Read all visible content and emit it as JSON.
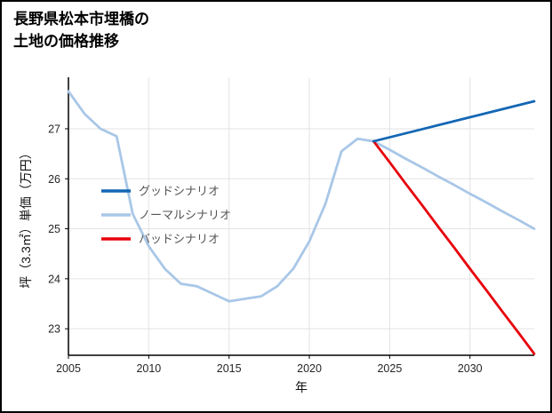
{
  "page": {
    "title_line1": "長野県松本市埋橋の",
    "title_line2": "土地の価格推移"
  },
  "chart_data": {
    "type": "line",
    "title": "長野県松本市埋橋の土地の価格推移",
    "xlabel": "年",
    "ylabel": "坪（3.3㎡）単価（万円）",
    "xlim": [
      2005,
      2034
    ],
    "ylim": [
      22.47,
      28.03
    ],
    "xticks": [
      2005,
      2010,
      2015,
      2020,
      2025,
      2030
    ],
    "yticks": [
      23,
      24,
      25,
      26,
      27
    ],
    "grid": true,
    "legend_position": "center-left",
    "axis_color": "#000000",
    "grid_color": "#e3e3e3",
    "tick_label_color": "#262626",
    "legend_text_color": "#555555",
    "series": [
      {
        "name": "グッドシナリオ",
        "color": "#1467b4",
        "x": [
          2024,
          2025,
          2026,
          2027,
          2028,
          2029,
          2030,
          2031,
          2032,
          2033,
          2034
        ],
        "y": [
          26.75,
          26.83,
          26.91,
          26.99,
          27.07,
          27.15,
          27.23,
          27.31,
          27.39,
          27.47,
          27.55
        ]
      },
      {
        "name": "ノーマルシナリオ",
        "color": "#a9c7e7",
        "x": [
          2005,
          2006,
          2007,
          2008,
          2009,
          2010,
          2011,
          2012,
          2013,
          2014,
          2015,
          2016,
          2017,
          2018,
          2019,
          2020,
          2021,
          2022,
          2023,
          2024,
          2025,
          2026,
          2027,
          2028,
          2029,
          2030,
          2031,
          2032,
          2033,
          2034
        ],
        "y": [
          27.75,
          27.3,
          27.0,
          26.85,
          25.3,
          24.65,
          24.2,
          23.9,
          23.85,
          23.7,
          23.55,
          23.6,
          23.65,
          23.85,
          24.2,
          24.75,
          25.5,
          26.55,
          26.8,
          26.75,
          26.58,
          26.4,
          26.23,
          26.05,
          25.88,
          25.7,
          25.53,
          25.35,
          25.18,
          25.0
        ]
      },
      {
        "name": "バッドシナリオ",
        "color": "#e8000b",
        "x": [
          2024,
          2025,
          2026,
          2027,
          2028,
          2029,
          2030,
          2031,
          2032,
          2033,
          2034
        ],
        "y": [
          26.75,
          26.33,
          25.9,
          25.48,
          25.05,
          24.63,
          24.2,
          23.78,
          23.35,
          22.93,
          22.5
        ]
      }
    ]
  }
}
